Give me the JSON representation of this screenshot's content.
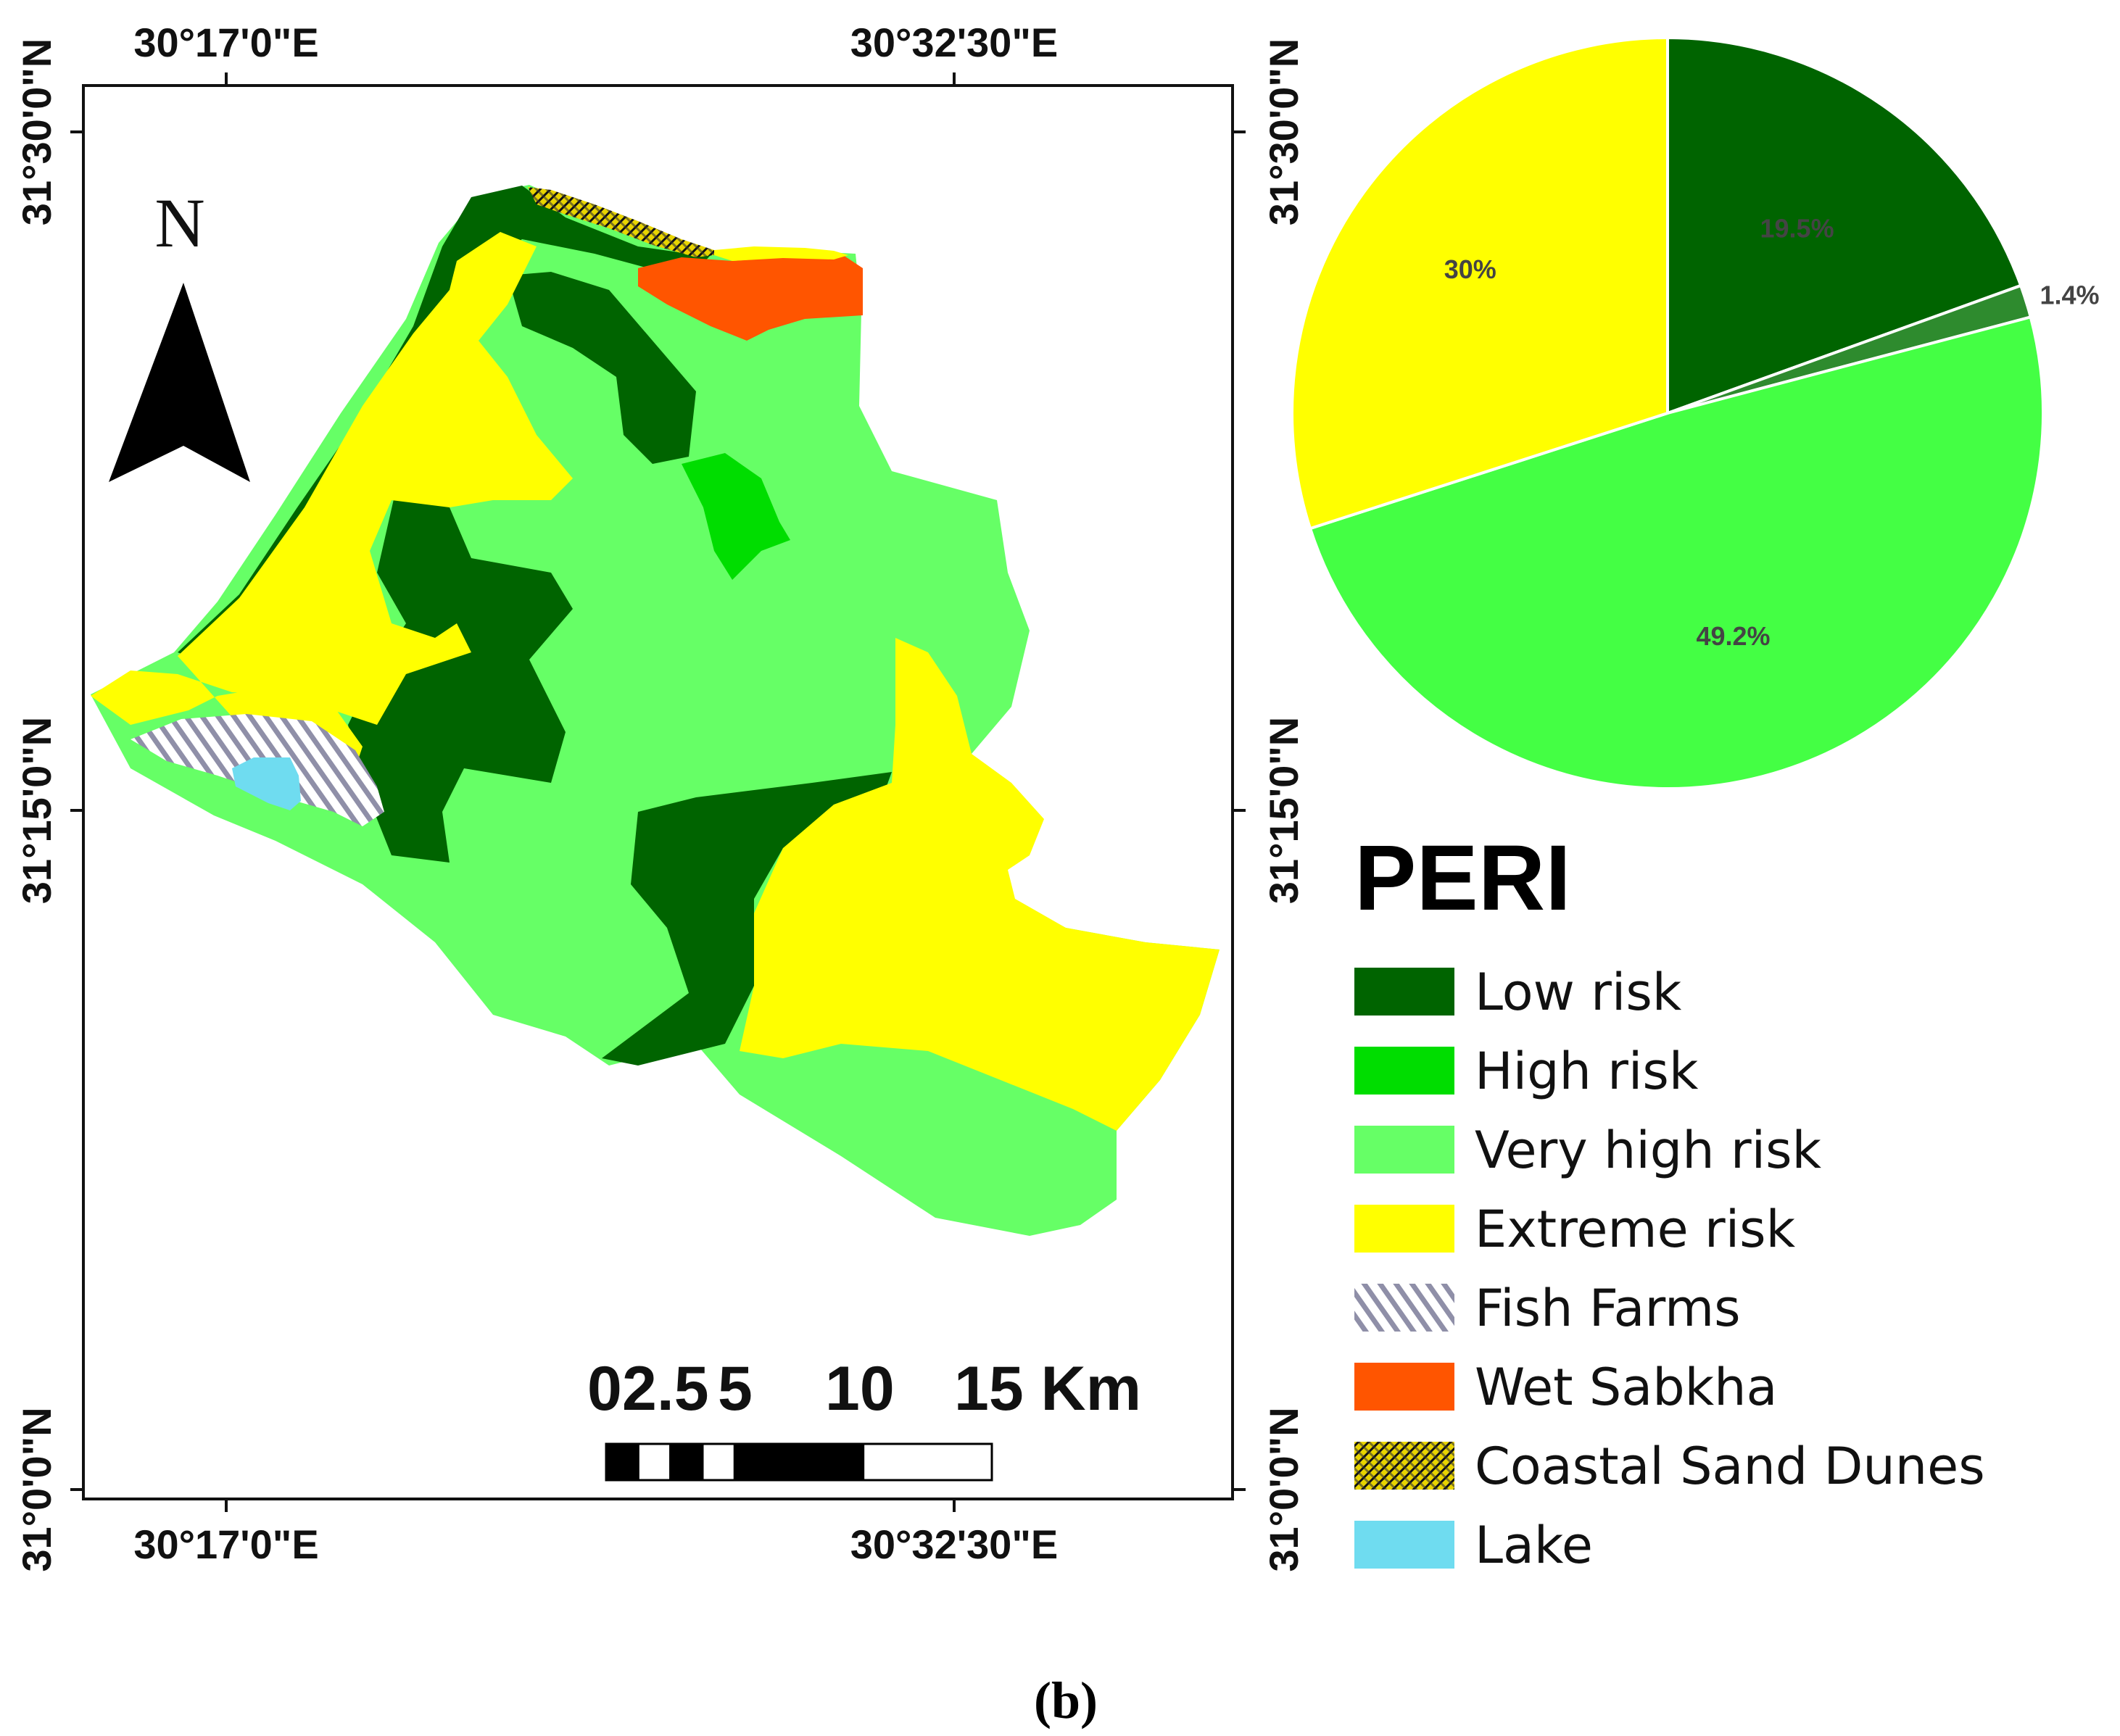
{
  "map": {
    "x_labels": {
      "left": "30°17'0\"E",
      "right": "30°32'30\"E"
    },
    "y_labels": {
      "top": "31°30'0\"N",
      "middle": "31°15'0\"N",
      "bottom": "31°0'0\"N"
    },
    "north_label": "N",
    "scale_bar": {
      "labels": [
        "0",
        "2.5",
        "5",
        "10",
        "15 Km"
      ],
      "colors": [
        "#000000",
        "#ffffff"
      ]
    }
  },
  "chart_data": {
    "type": "pie",
    "slices": [
      {
        "label": "19.5%",
        "value": 19.5,
        "color": "#006400"
      },
      {
        "label": "1.4%",
        "value": 1.4,
        "color": "#2e8b2e"
      },
      {
        "label": "49.2%",
        "value": 49.2,
        "color": "#44ff44"
      },
      {
        "label": "30%",
        "value": 30,
        "color": "#ffff00"
      }
    ]
  },
  "legend": {
    "title": "PERI",
    "items": [
      {
        "label": "Low risk",
        "color": "#006400",
        "pattern": "solid"
      },
      {
        "label": "High risk",
        "color": "#00dd00",
        "pattern": "solid"
      },
      {
        "label": "Very high risk",
        "color": "#66ff66",
        "pattern": "solid"
      },
      {
        "label": "Extreme risk",
        "color": "#ffff00",
        "pattern": "solid"
      },
      {
        "label": "Fish Farms",
        "color": "#8f8fa8",
        "pattern": "hatch"
      },
      {
        "label": "Wet Sabkha",
        "color": "#ff5500",
        "pattern": "solid"
      },
      {
        "label": "Coastal Sand Dunes",
        "color": "#e6d200",
        "pattern": "dunes"
      },
      {
        "label": "Lake",
        "color": "#6fdcf0",
        "pattern": "solid"
      }
    ]
  },
  "caption": "(b)"
}
